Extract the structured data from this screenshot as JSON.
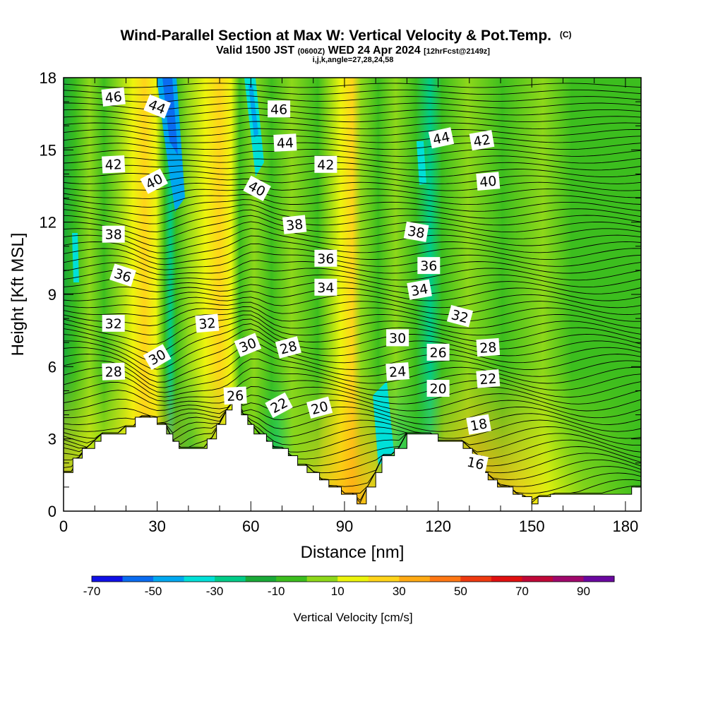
{
  "chart_data": {
    "type": "heatmap",
    "title": "Wind-Parallel Section at Max W: Vertical Velocity & Pot.Temp.",
    "title_mark": "(C)",
    "subtitle_main_1": "Valid 1500 JST",
    "subtitle_small_1": "(0600Z)",
    "subtitle_main_2": "WED 24 Apr 2024",
    "subtitle_small_2": "[12hrFcst@2149z]",
    "subtitle_line3": "i,j,k,angle=27,28,24,58",
    "xlabel": "Distance [nm]",
    "ylabel": "Height [Kft MSL]",
    "xlim": [
      0,
      185
    ],
    "ylim": [
      0,
      18
    ],
    "x_ticks": [
      0,
      30,
      60,
      90,
      120,
      150,
      180
    ],
    "y_ticks": [
      0,
      3,
      6,
      9,
      12,
      15,
      18
    ],
    "x_tick_labels": [
      "0",
      "30",
      "60",
      "90",
      "120",
      "150",
      "180"
    ],
    "y_tick_labels": [
      "0",
      "3",
      "6",
      "9",
      "12",
      "15",
      "18"
    ],
    "colorbar": {
      "label": "Vertical Velocity [cm/s]",
      "min": -70,
      "max": 100,
      "step": 10,
      "tick_values": [
        -70,
        -50,
        -30,
        -10,
        10,
        30,
        50,
        70,
        90
      ],
      "tick_labels": [
        "-70",
        "-50",
        "-30",
        "-10",
        "10",
        "30",
        "50",
        "70",
        "90"
      ],
      "colors": [
        "#1010e6",
        "#0a6cf0",
        "#00a8f0",
        "#00e0d8",
        "#00cc88",
        "#1aaa38",
        "#3cbe1e",
        "#8ed81a",
        "#ecf40c",
        "#ffd41a",
        "#ffaa14",
        "#ff7814",
        "#ee3a10",
        "#e01010",
        "#c00838",
        "#a0086c",
        "#6a08a0"
      ]
    },
    "terrain_top_kft": [
      [
        0,
        1.6
      ],
      [
        3,
        1.6
      ],
      [
        3,
        2.2
      ],
      [
        6,
        2.2
      ],
      [
        6,
        2.6
      ],
      [
        10,
        2.6
      ],
      [
        10,
        2.9
      ],
      [
        12,
        2.9
      ],
      [
        12,
        3.2
      ],
      [
        20,
        3.2
      ],
      [
        20,
        3.5
      ],
      [
        23,
        3.5
      ],
      [
        23,
        3.9
      ],
      [
        30,
        3.9
      ],
      [
        30,
        3.6
      ],
      [
        33,
        3.6
      ],
      [
        33,
        3.2
      ],
      [
        35,
        3.2
      ],
      [
        35,
        2.9
      ],
      [
        37,
        2.9
      ],
      [
        37,
        2.6
      ],
      [
        46,
        2.6
      ],
      [
        46,
        3.0
      ],
      [
        49,
        3.0
      ],
      [
        49,
        3.6
      ],
      [
        52,
        3.6
      ],
      [
        52,
        4.2
      ],
      [
        54,
        4.2
      ],
      [
        54,
        4.6
      ],
      [
        57,
        4.6
      ],
      [
        57,
        4.0
      ],
      [
        59,
        4.0
      ],
      [
        59,
        3.6
      ],
      [
        61,
        3.6
      ],
      [
        61,
        3.2
      ],
      [
        65,
        3.2
      ],
      [
        65,
        2.9
      ],
      [
        67,
        2.9
      ],
      [
        67,
        2.6
      ],
      [
        72,
        2.6
      ],
      [
        72,
        2.3
      ],
      [
        75,
        2.3
      ],
      [
        75,
        1.9
      ],
      [
        78,
        1.9
      ],
      [
        78,
        1.6
      ],
      [
        82,
        1.6
      ],
      [
        82,
        1.3
      ],
      [
        85,
        1.3
      ],
      [
        85,
        1.0
      ],
      [
        89,
        1.0
      ],
      [
        89,
        0.7
      ],
      [
        94,
        0.7
      ],
      [
        94,
        0.3
      ],
      [
        97,
        0.3
      ],
      [
        97,
        1.0
      ],
      [
        100,
        1.0
      ],
      [
        100,
        1.6
      ],
      [
        102,
        1.6
      ],
      [
        102,
        2.3
      ],
      [
        106,
        2.3
      ],
      [
        106,
        2.6
      ],
      [
        110,
        2.6
      ],
      [
        110,
        3.2
      ],
      [
        120,
        3.2
      ],
      [
        120,
        2.9
      ],
      [
        128,
        2.9
      ],
      [
        128,
        2.6
      ],
      [
        131,
        2.6
      ],
      [
        131,
        2.3
      ],
      [
        134,
        2.3
      ],
      [
        134,
        1.6
      ],
      [
        136,
        1.6
      ],
      [
        136,
        1.3
      ],
      [
        139,
        1.3
      ],
      [
        139,
        1.0
      ],
      [
        144,
        1.0
      ],
      [
        144,
        0.7
      ],
      [
        147,
        0.7
      ],
      [
        147,
        0.6
      ],
      [
        150,
        0.6
      ],
      [
        150,
        0.3
      ],
      [
        152,
        0.3
      ],
      [
        152,
        0.6
      ],
      [
        156,
        0.6
      ],
      [
        156,
        0.7
      ],
      [
        182,
        0.7
      ],
      [
        182,
        1.0
      ],
      [
        185,
        1.0
      ]
    ],
    "contour_labels": [
      {
        "text": "46",
        "x": 16,
        "y": 17.2,
        "angle": -6
      },
      {
        "text": "44",
        "x": 30,
        "y": 16.8,
        "angle": 22
      },
      {
        "text": "46",
        "x": 69,
        "y": 16.7,
        "angle": 0
      },
      {
        "text": "44",
        "x": 71,
        "y": 15.3,
        "angle": -3
      },
      {
        "text": "44",
        "x": 121,
        "y": 15.5,
        "angle": -12
      },
      {
        "text": "42",
        "x": 134,
        "y": 15.4,
        "angle": -10
      },
      {
        "text": "42",
        "x": 16,
        "y": 14.4,
        "angle": -3
      },
      {
        "text": "42",
        "x": 84,
        "y": 14.4,
        "angle": 0
      },
      {
        "text": "40",
        "x": 29,
        "y": 13.7,
        "angle": -28
      },
      {
        "text": "40",
        "x": 62,
        "y": 13.4,
        "angle": 28
      },
      {
        "text": "40",
        "x": 136,
        "y": 13.7,
        "angle": -5
      },
      {
        "text": "38",
        "x": 74,
        "y": 11.9,
        "angle": -6
      },
      {
        "text": "38",
        "x": 113,
        "y": 11.6,
        "angle": 10
      },
      {
        "text": "38",
        "x": 16,
        "y": 11.5,
        "angle": 0
      },
      {
        "text": "36",
        "x": 84,
        "y": 10.5,
        "angle": 0
      },
      {
        "text": "36",
        "x": 117,
        "y": 10.2,
        "angle": 0
      },
      {
        "text": "36",
        "x": 19,
        "y": 9.8,
        "angle": 18
      },
      {
        "text": "34",
        "x": 84,
        "y": 9.3,
        "angle": 0
      },
      {
        "text": "34",
        "x": 114,
        "y": 9.2,
        "angle": -10
      },
      {
        "text": "32",
        "x": 16,
        "y": 7.8,
        "angle": 0
      },
      {
        "text": "32",
        "x": 46,
        "y": 7.8,
        "angle": -5
      },
      {
        "text": "32",
        "x": 127,
        "y": 8.1,
        "angle": 15
      },
      {
        "text": "30",
        "x": 107,
        "y": 7.2,
        "angle": 0
      },
      {
        "text": "30",
        "x": 59,
        "y": 6.9,
        "angle": -22
      },
      {
        "text": "28",
        "x": 72,
        "y": 6.8,
        "angle": -15
      },
      {
        "text": "28",
        "x": 136,
        "y": 6.8,
        "angle": -4
      },
      {
        "text": "30",
        "x": 30,
        "y": 6.4,
        "angle": -30
      },
      {
        "text": "26",
        "x": 120,
        "y": 6.6,
        "angle": 0
      },
      {
        "text": "28",
        "x": 16,
        "y": 5.8,
        "angle": -2
      },
      {
        "text": "24",
        "x": 107,
        "y": 5.8,
        "angle": -4
      },
      {
        "text": "22",
        "x": 136,
        "y": 5.5,
        "angle": -5
      },
      {
        "text": "20",
        "x": 120,
        "y": 5.1,
        "angle": 0
      },
      {
        "text": "26",
        "x": 55,
        "y": 4.8,
        "angle": -3
      },
      {
        "text": "22",
        "x": 69,
        "y": 4.4,
        "angle": -28
      },
      {
        "text": "20",
        "x": 82,
        "y": 4.3,
        "angle": -15
      },
      {
        "text": "18",
        "x": 133,
        "y": 3.6,
        "angle": -10
      },
      {
        "text": "16",
        "x": 132,
        "y": 2.0,
        "angle": 12
      }
    ]
  }
}
